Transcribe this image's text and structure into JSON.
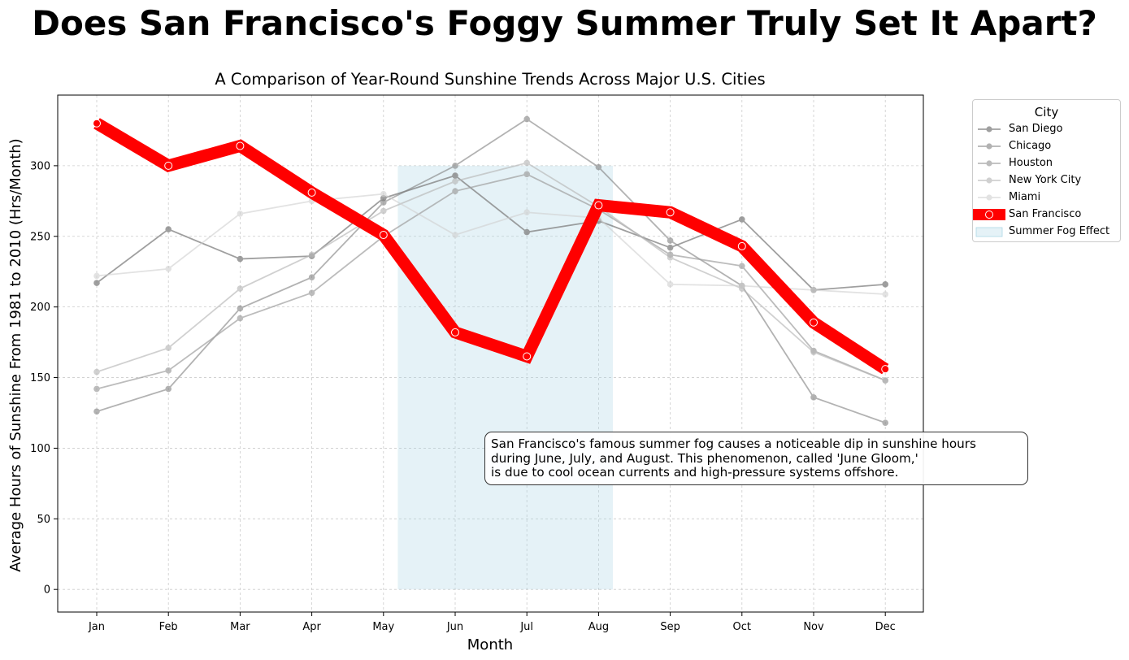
{
  "suptitle": "Does San Francisco's Foggy Summer Truly Set It Apart?",
  "chart_data": {
    "type": "line",
    "title": "A Comparison of Year-Round Sunshine Trends Across Major U.S. Cities",
    "xlabel": "Month",
    "ylabel": "Average Hours of Sunshine From 1981 to 2010 (Hrs/Month)",
    "categories": [
      "Jan",
      "Feb",
      "Mar",
      "Apr",
      "May",
      "Jun",
      "Jul",
      "Aug",
      "Sep",
      "Oct",
      "Nov",
      "Dec"
    ],
    "ylim": [
      -16,
      350
    ],
    "yticks": [
      0,
      50,
      100,
      150,
      200,
      250,
      300
    ],
    "grid": true,
    "legend_title": "City",
    "legend_position": "outside-right-top",
    "series": [
      {
        "name": "San Diego",
        "color": "#808080",
        "opacity": 0.75,
        "values": [
          217,
          255,
          234,
          236,
          277,
          293,
          253,
          261,
          242,
          262,
          212,
          216
        ]
      },
      {
        "name": "Chicago",
        "color": "#808080",
        "opacity": 0.6,
        "values": [
          126,
          142,
          199,
          221,
          274,
          300,
          333,
          299,
          247,
          215,
          136,
          118
        ]
      },
      {
        "name": "Houston",
        "color": "#a0a0a0",
        "opacity": 0.7,
        "values": [
          142,
          155,
          192,
          210,
          250,
          282,
          294,
          269,
          237,
          229,
          169,
          148
        ]
      },
      {
        "name": "New York City",
        "color": "#b8b8b8",
        "opacity": 0.65,
        "values": [
          154,
          171,
          213,
          237,
          268,
          289,
          302,
          271,
          235,
          213,
          168,
          148
        ]
      },
      {
        "name": "Miami",
        "color": "#d0d0d0",
        "opacity": 0.6,
        "values": [
          222,
          227,
          266,
          275,
          280,
          251,
          267,
          263,
          216,
          215,
          212,
          209
        ]
      },
      {
        "name": "San Francisco",
        "color": "#ff0000",
        "opacity": 1,
        "highlight": true,
        "values": [
          330,
          300,
          314,
          281,
          251,
          182,
          165,
          272,
          267,
          243,
          189,
          156
        ]
      }
    ],
    "shaded_region": {
      "label": "Summer Fog Effect",
      "x_start": 4.2,
      "x_end": 7.2,
      "y_start": 0,
      "y_end": 300,
      "color": "#add8e6"
    },
    "annotation": "San Francisco's famous summer fog causes a noticeable dip in sunshine hours\nduring June, July, and August. This phenomenon, called 'June Gloom,'\nis due to cool ocean currents and high-pressure systems offshore."
  }
}
